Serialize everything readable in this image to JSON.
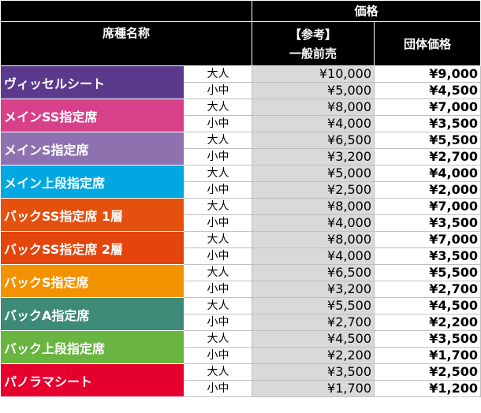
{
  "header": {
    "price": "価格",
    "seat_name": "席種名称",
    "reference_bracket": "【参考】",
    "regular_advance": "一般前売",
    "group_price": "団体価格"
  },
  "rows": [
    {
      "name": "ヴィッセルシート",
      "color": "#5b3a8e",
      "adult": {
        "label": "大人",
        "regular": "¥10,000",
        "group": "¥9,000"
      },
      "child": {
        "label": "小中",
        "regular": "¥5,000",
        "group": "¥4,500"
      }
    },
    {
      "name": "メインSS指定席",
      "color": "#d8418a",
      "adult": {
        "label": "大人",
        "regular": "¥8,000",
        "group": "¥7,000"
      },
      "child": {
        "label": "小中",
        "regular": "¥4,000",
        "group": "¥3,500"
      }
    },
    {
      "name": "メインS指定席",
      "color": "#8e72b0",
      "adult": {
        "label": "大人",
        "regular": "¥6,500",
        "group": "¥5,500"
      },
      "child": {
        "label": "小中",
        "regular": "¥3,200",
        "group": "¥2,700"
      }
    },
    {
      "name": "メイン上段指定席",
      "color": "#00a7e1",
      "adult": {
        "label": "大人",
        "regular": "¥5,000",
        "group": "¥4,000"
      },
      "child": {
        "label": "小中",
        "regular": "¥2,500",
        "group": "¥2,000"
      }
    },
    {
      "name": "バックSS指定席 1層",
      "color": "#e4510f",
      "adult": {
        "label": "大人",
        "regular": "¥8,000",
        "group": "¥7,000"
      },
      "child": {
        "label": "小中",
        "regular": "¥4,000",
        "group": "¥3,500"
      }
    },
    {
      "name": "バックSS指定席 2層",
      "color": "#e4450c",
      "adult": {
        "label": "大人",
        "regular": "¥8,000",
        "group": "¥7,000"
      },
      "child": {
        "label": "小中",
        "regular": "¥4,000",
        "group": "¥3,500"
      }
    },
    {
      "name": "バックS指定席",
      "color": "#f39200",
      "adult": {
        "label": "大人",
        "regular": "¥6,500",
        "group": "¥5,500"
      },
      "child": {
        "label": "小中",
        "regular": "¥3,200",
        "group": "¥2,700"
      }
    },
    {
      "name": "バックA指定席",
      "color": "#3d8a77",
      "adult": {
        "label": "大人",
        "regular": "¥5,500",
        "group": "¥4,500"
      },
      "child": {
        "label": "小中",
        "regular": "¥2,700",
        "group": "¥2,200"
      }
    },
    {
      "name": "バック上段指定席",
      "color": "#6ab442",
      "adult": {
        "label": "大人",
        "regular": "¥4,500",
        "group": "¥3,500"
      },
      "child": {
        "label": "小中",
        "regular": "¥2,200",
        "group": "¥1,700"
      }
    },
    {
      "name": "パノラマシート",
      "color": "#e6002d",
      "adult": {
        "label": "大人",
        "regular": "¥3,500",
        "group": "¥2,500"
      },
      "child": {
        "label": "小中",
        "regular": "¥1,700",
        "group": "¥1,200"
      }
    }
  ]
}
